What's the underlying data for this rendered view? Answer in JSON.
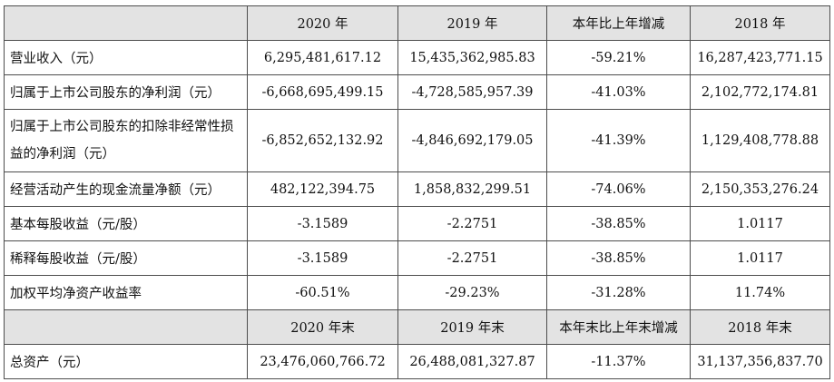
{
  "header": {
    "columns": [
      "",
      "2020 年",
      "2019 年",
      "本年比上年增减",
      "2018 年"
    ]
  },
  "rows": [
    {
      "label": "营业收入（元）",
      "values": [
        "6,295,481,617.12",
        "15,435,362,985.83",
        "-59.21%",
        "16,287,423,771.15"
      ]
    },
    {
      "label": "归属于上市公司股东的净利润（元）",
      "values": [
        "-6,668,695,499.15",
        "-4,728,585,957.39",
        "-41.03%",
        "2,102,772,174.81"
      ]
    },
    {
      "label": "归属于上市公司股东的扣除非经常性损益的净利润（元）",
      "values": [
        "-6,852,652,132.92",
        "-4,846,692,179.05",
        "-41.39%",
        "1,129,408,778.88"
      ]
    },
    {
      "label": "经营活动产生的现金流量净额（元）",
      "values": [
        "482,122,394.75",
        "1,858,832,299.51",
        "-74.06%",
        "2,150,353,276.24"
      ]
    },
    {
      "label": "基本每股收益（元/股）",
      "values": [
        "-3.1589",
        "-2.2751",
        "-38.85%",
        "1.0117"
      ]
    },
    {
      "label": "稀释每股收益（元/股）",
      "values": [
        "-3.1589",
        "-2.2751",
        "-38.85%",
        "1.0117"
      ]
    },
    {
      "label": "加权平均净资产收益率",
      "values": [
        "-60.51%",
        "-29.23%",
        "-31.28%",
        "11.74%"
      ]
    }
  ],
  "header2": {
    "columns": [
      "",
      "2020 年末",
      "2019 年末",
      "本年末比上年末增减",
      "2018 年末"
    ]
  },
  "rows2": [
    {
      "label": "总资产（元）",
      "values": [
        "23,476,060,766.72",
        "26,488,081,327.87",
        "-11.37%",
        "31,137,356,837.70"
      ]
    }
  ]
}
